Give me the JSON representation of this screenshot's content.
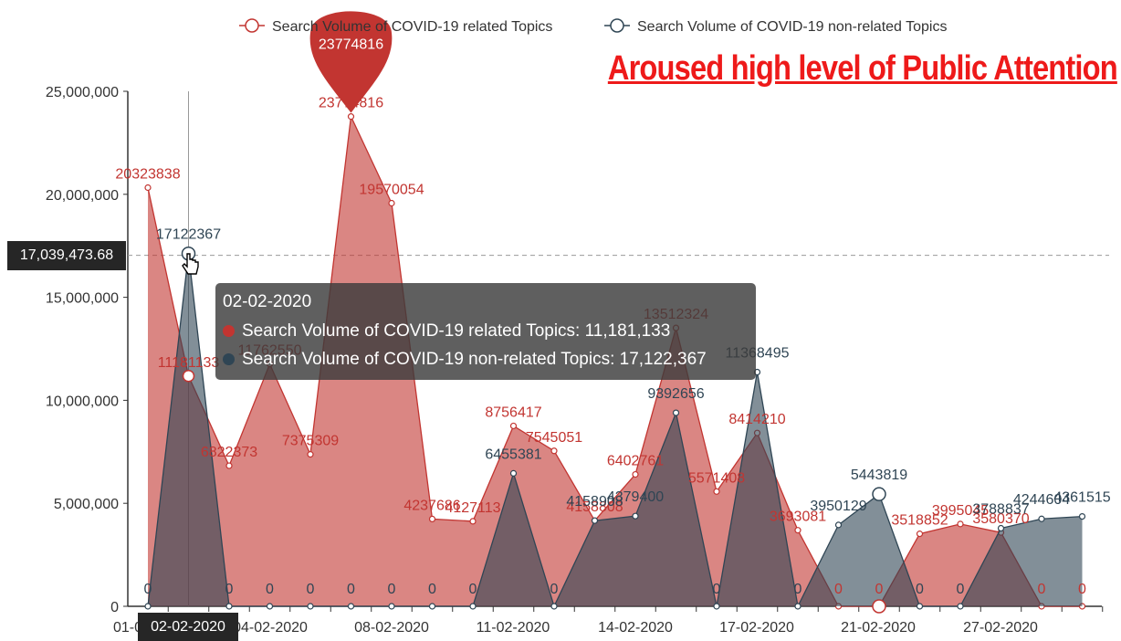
{
  "chart_data": {
    "type": "area",
    "title": "",
    "xlabel": "",
    "ylabel": "",
    "ylim": [
      0,
      25000000
    ],
    "y_ticks": [
      "0",
      "5,000,000",
      "10,000,000",
      "15,000,000",
      "20,000,000",
      "25,000,000"
    ],
    "x_tick_labels": [
      "01-0",
      "02-02-2020",
      "04-02-2020",
      "08-02-2020",
      "11-02-2020",
      "14-02-2020",
      "17-02-2020",
      "21-02-2020",
      "27-02-2020"
    ],
    "grid": false,
    "legend_position": "top",
    "series": [
      {
        "name": "Search Volume of COVID-19 related Topics",
        "color": "#c23531",
        "values": [
          20323838,
          11181133,
          6822373,
          11762550,
          7375309,
          23774816,
          19570054,
          4237686,
          4127113,
          8756417,
          7545051,
          4158808,
          6402761,
          13512324,
          5571408,
          8414210,
          3693081,
          0,
          0,
          3518852,
          3995045,
          3580370,
          0,
          0
        ]
      },
      {
        "name": "Search Volume of COVID-19 non-related Topics",
        "color": "#2f4554",
        "values": [
          0,
          17122367,
          0,
          0,
          0,
          0,
          0,
          0,
          0,
          6455381,
          0,
          4158908,
          4379400,
          9392656,
          0,
          11368495,
          0,
          3950129,
          5443819,
          0,
          0,
          3788837,
          4244604,
          4361515
        ]
      }
    ],
    "point_labels_related": [
      "20323838",
      "11181133",
      "6822373",
      "11762550",
      "7375309",
      "23774816",
      "19570054",
      "4237686",
      "4127113",
      "8756417",
      "7545051",
      "4158808",
      "6402761",
      "13512324",
      "5571408",
      "8414210",
      "3693081",
      "0",
      "0",
      "3518852",
      "3995045",
      "3580370",
      "0",
      "0"
    ],
    "point_labels_nonrelated": [
      "0",
      "17122367",
      "0",
      "0",
      "0",
      "0",
      "0",
      "0",
      "0",
      "6455381",
      "0",
      "4158908",
      "4379400",
      "9392656",
      "0",
      "11368495",
      "0",
      "3950129",
      "5443819",
      "0",
      "0",
      "3788837",
      "4244604",
      "4361515"
    ],
    "max_pin_label": "23774816",
    "crosshair_value_label": "17,039,473.68",
    "crosshair_value": 17039473.68,
    "crosshair_x_label": "02-02-2020",
    "headline": "Aroused high level of Public Attention"
  },
  "tooltip": {
    "title": "02-02-2020",
    "row1": "Search Volume of COVID-19 related Topics: 11,181,133",
    "row2": "Search Volume of COVID-19 non-related Topics: 17,122,367"
  },
  "legend": {
    "item1": "Search Volume of COVID-19 related Topics",
    "item2": "Search Volume of COVID-19 non-related Topics"
  }
}
